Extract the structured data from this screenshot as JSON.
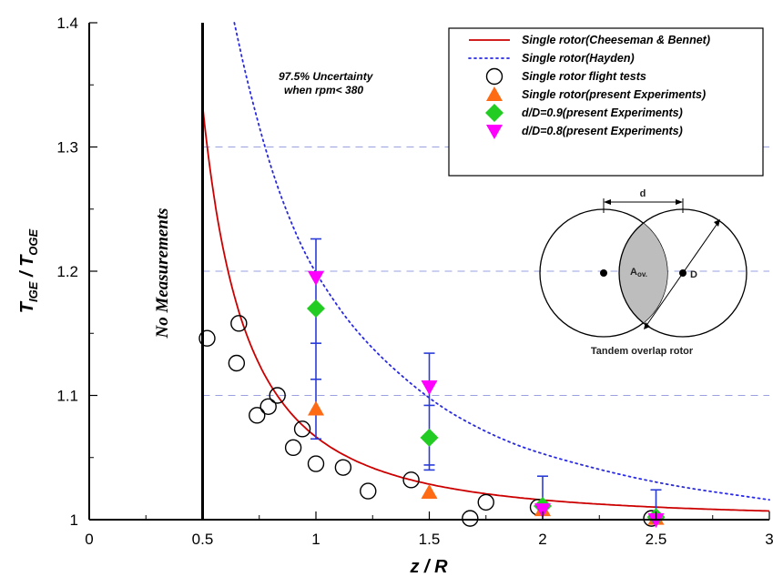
{
  "chart_data": {
    "type": "scatter",
    "xlabel": "z / R",
    "ylabel_main": "T",
    "ylabel_sub1": "IGE",
    "ylabel_sep": " / T",
    "ylabel_sub2": "OGE",
    "xlim": [
      0,
      3
    ],
    "ylim": [
      1,
      1.4
    ],
    "x_ticks": [
      "0",
      "0.5",
      "1",
      "1.5",
      "2",
      "2.5",
      "3"
    ],
    "y_ticks": [
      "1",
      "1.1",
      "1.2",
      "1.3",
      "1.4"
    ],
    "grid": "dashed horizontal lines at y=1.1, 1.2, 1.3 (right of x=0.5)",
    "legend_position": "top-right",
    "annotations": {
      "uncertainty_line1": "97.5% Uncertainty",
      "uncertainty_line2": "when rpm< 380",
      "no_measurements": "No Measurements",
      "inset_d": "d",
      "inset_aov_main": "A",
      "inset_aov_sub": "ov.",
      "inset_D": "D",
      "inset_caption": "Tandem overlap rotor"
    },
    "series": [
      {
        "name": "Single rotor(Cheeseman & Bennet)",
        "style": "line",
        "color": "#cc0000",
        "formula": "1/(1-(1/(4z/R))^2)",
        "x": [
          0.5,
          0.55,
          0.6,
          0.65,
          0.7,
          0.75,
          0.8,
          0.9,
          1.0,
          1.2,
          1.5,
          2.0,
          2.5,
          3.0
        ],
        "y": [
          1.333,
          1.261,
          1.21,
          1.174,
          1.147,
          1.125,
          1.108,
          1.084,
          1.067,
          1.045,
          1.029,
          1.016,
          1.01,
          1.007
        ]
      },
      {
        "name": "Single rotor(Hayden)",
        "style": "dotted line",
        "color": "#2a2ae0",
        "x": [
          0.64,
          0.7,
          0.8,
          0.9,
          1.0,
          1.2,
          1.5,
          1.75,
          2.0,
          2.5,
          3.0
        ],
        "y": [
          1.4,
          1.35,
          1.283,
          1.234,
          1.197,
          1.145,
          1.096,
          1.07,
          1.052,
          1.029,
          1.016
        ]
      },
      {
        "name": "Single rotor flight tests",
        "style": "open circle",
        "color": "#000000",
        "x": [
          0.52,
          0.65,
          0.66,
          0.74,
          0.79,
          0.83,
          0.9,
          0.94,
          1.0,
          1.12,
          1.23,
          1.42,
          1.68,
          1.75,
          1.98,
          2.48
        ],
        "y": [
          1.146,
          1.126,
          1.158,
          1.084,
          1.091,
          1.1,
          1.058,
          1.073,
          1.045,
          1.042,
          1.023,
          1.032,
          1.001,
          1.014,
          1.01,
          1.001
        ]
      },
      {
        "name": "Single rotor(present Experiments)",
        "style": "triangle up",
        "color": "#ff6a14",
        "x": [
          1.0,
          1.5,
          2.0,
          2.5
        ],
        "y": [
          1.089,
          1.022,
          1.008,
          1.001
        ]
      },
      {
        "name": "d/D=0.9(present Experiments)",
        "style": "diamond",
        "color": "#22cc22",
        "x": [
          1.0,
          1.5,
          2.0,
          2.5
        ],
        "y": [
          1.17,
          1.066,
          1.011,
          1.002
        ]
      },
      {
        "name": "d/D=0.8(present Experiments)",
        "style": "triangle down",
        "color": "#ff00ff",
        "x": [
          1.0,
          1.5,
          2.0,
          2.5
        ],
        "y": [
          1.195,
          1.107,
          1.008,
          1.0
        ]
      }
    ],
    "error_bars": {
      "color": "#2a3cd8",
      "x": [
        1.0,
        1.5,
        2.0,
        2.5
      ],
      "low": [
        1.065,
        1.04,
        1.0,
        1.0
      ],
      "high": [
        1.226,
        1.134,
        1.035,
        1.024
      ],
      "inner_low": [
        1.142,
        1.044
      ],
      "inner_high": [
        1.113,
        1.092
      ]
    }
  }
}
